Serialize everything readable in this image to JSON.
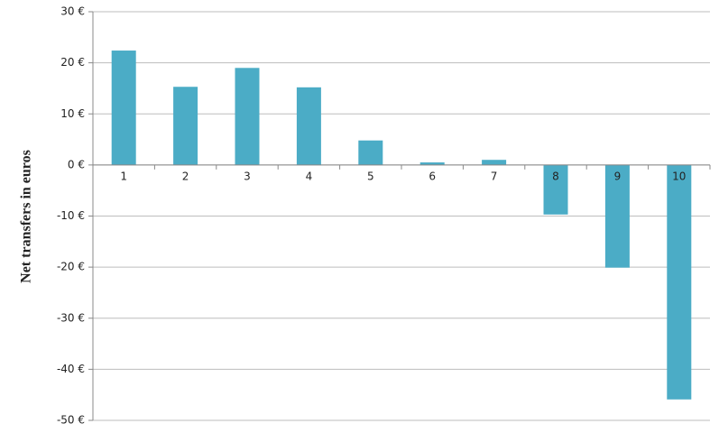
{
  "chart_data": {
    "type": "bar",
    "y_label": "Net transfers in euros",
    "categories": [
      "1",
      "2",
      "3",
      "4",
      "5",
      "6",
      "7",
      "8",
      "9",
      "10"
    ],
    "values": [
      22.4,
      15.3,
      19.0,
      15.2,
      4.8,
      0.5,
      1.0,
      -9.7,
      -20.1,
      -45.9
    ],
    "color": "#4bacc6",
    "ylim": [
      -50,
      30
    ],
    "yticks": [
      {
        "value": -50,
        "label": "-50 €"
      },
      {
        "value": -40,
        "label": "-40 €"
      },
      {
        "value": -30,
        "label": "-30 €"
      },
      {
        "value": -20,
        "label": "-20 €"
      },
      {
        "value": -10,
        "label": "-10 €"
      },
      {
        "value": 0,
        "label": "0 €"
      },
      {
        "value": 10,
        "label": "10 €"
      },
      {
        "value": 20,
        "label": "20 €"
      },
      {
        "value": 30,
        "label": "30 €"
      }
    ],
    "grid": true
  }
}
